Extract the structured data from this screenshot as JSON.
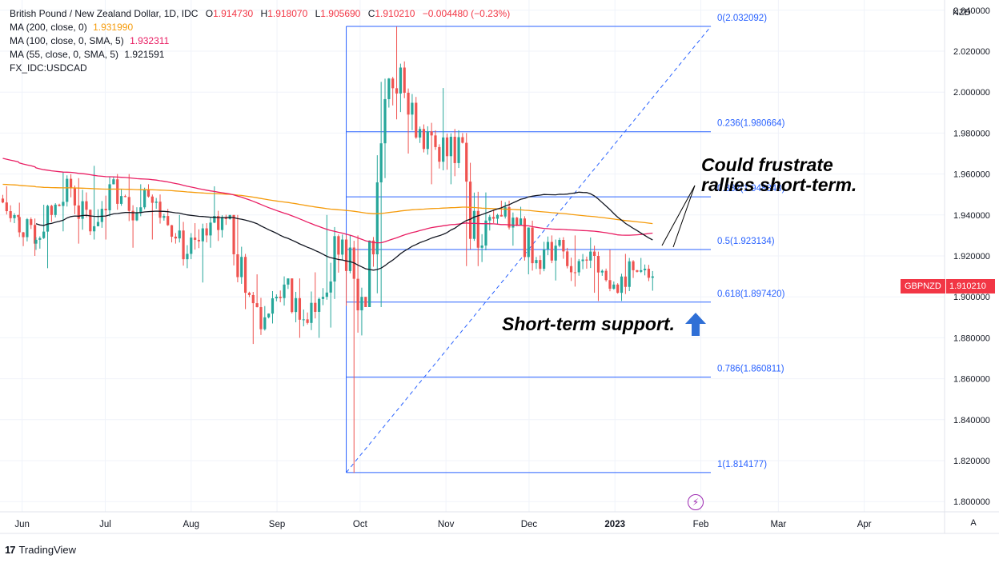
{
  "legend": {
    "title": "British Pound / New Zealand Dollar, 1D, IDC",
    "ohlc": {
      "open_label": "O",
      "open": "1.914730",
      "high_label": "H",
      "high": "1.918070",
      "low_label": "L",
      "low": "1.905690",
      "close_label": "C",
      "close": "1.910210",
      "change": "−0.004480 (−0.23%)"
    },
    "ma200": {
      "label": "MA (200, close, 0)",
      "value": "1.931990",
      "color": "#f59b0b"
    },
    "ma100": {
      "label": "MA (100, close, 0, SMA, 5)",
      "value": "1.932311",
      "color": "#e91e63"
    },
    "ma55": {
      "label": "MA (55, close, 0, SMA, 5)",
      "value": "1.921591",
      "color": "#131722"
    },
    "overlay": "FX_IDC:USDCAD"
  },
  "price_axis": {
    "unit": "NZD",
    "tag_symbol": "GBPNZD",
    "tag_price": "1.910210",
    "auto_label": "A"
  },
  "annotations": {
    "resistance_line1": "Could frustrate",
    "resistance_line2": "rallies short-term.",
    "support": "Short-term support."
  },
  "brand": {
    "logo": "17",
    "name": "TradingView"
  },
  "colors": {
    "up": "#26a69a",
    "down": "#ef5350",
    "fib": "#2962ff",
    "arrow": "#2f6fd6",
    "price_tag": "#f23645"
  },
  "chart_data": {
    "type": "candlestick",
    "symbol": "GBPNZD",
    "interval": "1D",
    "ylim": [
      1.795,
      2.045
    ],
    "y_ticks": [
      "2.040000",
      "2.020000",
      "2.000000",
      "1.980000",
      "1.960000",
      "1.940000",
      "1.920000",
      "1.900000",
      "1.880000",
      "1.860000",
      "1.840000",
      "1.820000",
      "1.800000"
    ],
    "x_ticks": [
      "Jun",
      "Jul",
      "Aug",
      "Sep",
      "Oct",
      "Nov",
      "Dec",
      "2023",
      "Feb",
      "Mar",
      "Apr"
    ],
    "last_price": 1.91021,
    "fibonacci": {
      "from": {
        "date": "2022-09-26",
        "price": 1.814177
      },
      "to": {
        "date": "2022-10-13",
        "price": 2.032092
      },
      "levels": [
        {
          "ratio": "0",
          "price": "2.032092"
        },
        {
          "ratio": "0.236",
          "price": "1.980664"
        },
        {
          "ratio": "0.382",
          "price": "1.948848"
        },
        {
          "ratio": "0.5",
          "price": "1.923134"
        },
        {
          "ratio": "0.618",
          "price": "1.897420"
        },
        {
          "ratio": "0.786",
          "price": "1.860811"
        },
        {
          "ratio": "1",
          "price": "1.814177"
        }
      ]
    },
    "candles": [
      {
        "d": "2022-05-25",
        "o": 1.948,
        "h": 1.954,
        "l": 1.936,
        "c": 1.939
      },
      {
        "d": "2022-05-31",
        "o": 1.939,
        "h": 1.946,
        "l": 1.92,
        "c": 1.926
      },
      {
        "d": "2022-06-06",
        "o": 1.926,
        "h": 1.945,
        "l": 1.914,
        "c": 1.94
      },
      {
        "d": "2022-06-13",
        "o": 1.94,
        "h": 1.961,
        "l": 1.932,
        "c": 1.953
      },
      {
        "d": "2022-06-20",
        "o": 1.953,
        "h": 1.958,
        "l": 1.926,
        "c": 1.932
      },
      {
        "d": "2022-06-27",
        "o": 1.932,
        "h": 1.964,
        "l": 1.928,
        "c": 1.955
      },
      {
        "d": "2022-07-04",
        "o": 1.955,
        "h": 1.96,
        "l": 1.937,
        "c": 1.942
      },
      {
        "d": "2022-07-11",
        "o": 1.942,
        "h": 1.955,
        "l": 1.924,
        "c": 1.949
      },
      {
        "d": "2022-07-18",
        "o": 1.949,
        "h": 1.95,
        "l": 1.928,
        "c": 1.935
      },
      {
        "d": "2022-07-25",
        "o": 1.935,
        "h": 1.94,
        "l": 1.914,
        "c": 1.921
      },
      {
        "d": "2022-08-01",
        "o": 1.921,
        "h": 1.936,
        "l": 1.907,
        "c": 1.93
      },
      {
        "d": "2022-08-08",
        "o": 1.93,
        "h": 1.954,
        "l": 1.924,
        "c": 1.938
      },
      {
        "d": "2022-08-15",
        "o": 1.938,
        "h": 1.94,
        "l": 1.894,
        "c": 1.902
      },
      {
        "d": "2022-08-22",
        "o": 1.902,
        "h": 1.911,
        "l": 1.877,
        "c": 1.89
      },
      {
        "d": "2022-08-29",
        "o": 1.89,
        "h": 1.91,
        "l": 1.887,
        "c": 1.906
      },
      {
        "d": "2022-09-05",
        "o": 1.906,
        "h": 1.909,
        "l": 1.88,
        "c": 1.889
      },
      {
        "d": "2022-09-12",
        "o": 1.889,
        "h": 1.912,
        "l": 1.88,
        "c": 1.9
      },
      {
        "d": "2022-09-19",
        "o": 1.9,
        "h": 1.94,
        "l": 1.885,
        "c": 1.928
      },
      {
        "d": "2022-09-26",
        "o": 1.928,
        "h": 1.93,
        "l": 1.814,
        "c": 1.9
      },
      {
        "d": "2022-10-03",
        "o": 1.9,
        "h": 2.005,
        "l": 1.895,
        "c": 1.975
      },
      {
        "d": "2022-10-10",
        "o": 1.975,
        "h": 2.032,
        "l": 1.958,
        "c": 2.012
      },
      {
        "d": "2022-10-17",
        "o": 2.012,
        "h": 2.015,
        "l": 1.97,
        "c": 1.982
      },
      {
        "d": "2022-10-24",
        "o": 1.982,
        "h": 1.985,
        "l": 1.955,
        "c": 1.966
      },
      {
        "d": "2022-10-31",
        "o": 1.966,
        "h": 2.002,
        "l": 1.955,
        "c": 1.978
      },
      {
        "d": "2022-11-07",
        "o": 1.978,
        "h": 1.98,
        "l": 1.915,
        "c": 1.924
      },
      {
        "d": "2022-11-14",
        "o": 1.924,
        "h": 1.951,
        "l": 1.917,
        "c": 1.94
      },
      {
        "d": "2022-11-21",
        "o": 1.94,
        "h": 1.947,
        "l": 1.925,
        "c": 1.935
      },
      {
        "d": "2022-11-28",
        "o": 1.935,
        "h": 1.944,
        "l": 1.911,
        "c": 1.918
      },
      {
        "d": "2022-12-05",
        "o": 1.918,
        "h": 1.93,
        "l": 1.908,
        "c": 1.925
      },
      {
        "d": "2022-12-12",
        "o": 1.925,
        "h": 1.93,
        "l": 1.905,
        "c": 1.912
      },
      {
        "d": "2022-12-19",
        "o": 1.912,
        "h": 1.929,
        "l": 1.902,
        "c": 1.92
      },
      {
        "d": "2022-12-26",
        "o": 1.92,
        "h": 1.923,
        "l": 1.898,
        "c": 1.906
      },
      {
        "d": "2023-01-02",
        "o": 1.906,
        "h": 1.921,
        "l": 1.898,
        "c": 1.913
      },
      {
        "d": "2023-01-09",
        "o": 1.913,
        "h": 1.919,
        "l": 1.903,
        "c": 1.91
      }
    ]
  }
}
